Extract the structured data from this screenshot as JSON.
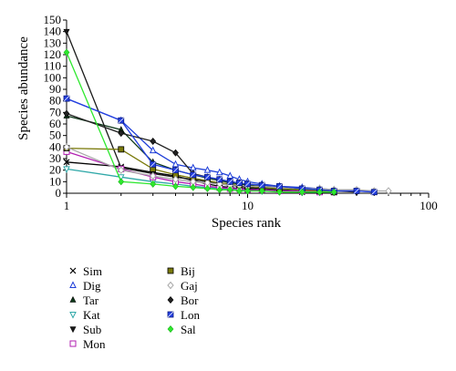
{
  "chart_data": {
    "type": "line",
    "xlabel": "Species rank",
    "ylabel": "Species abundance",
    "x_scale": "log",
    "xlim": [
      1,
      100
    ],
    "ylim": [
      0,
      150
    ],
    "x_ticks": [
      1,
      10,
      100
    ],
    "y_ticks": [
      0,
      10,
      20,
      30,
      40,
      50,
      60,
      70,
      80,
      90,
      100,
      110,
      120,
      130,
      140,
      150
    ],
    "grid": false,
    "legend_position": "bottom-left",
    "series": [
      {
        "name": "Sim",
        "marker": "x",
        "color": "#000000",
        "x": [
          1,
          2,
          3,
          4,
          5,
          6,
          7,
          8,
          9,
          10,
          12,
          15,
          20,
          25
        ],
        "y": [
          27,
          23,
          18,
          15,
          11,
          8,
          6,
          5,
          4,
          4,
          3,
          2,
          1,
          1
        ]
      },
      {
        "name": "Dig",
        "marker": "triangle-open",
        "color": "#1f3fd8",
        "x": [
          1,
          2,
          3,
          4,
          5,
          6,
          7,
          8,
          9,
          10,
          12,
          15,
          20,
          25,
          30,
          40,
          50
        ],
        "y": [
          82,
          63,
          37,
          25,
          22,
          20,
          18,
          15,
          12,
          10,
          8,
          6,
          5,
          4,
          3,
          2,
          1
        ]
      },
      {
        "name": "Tar",
        "marker": "triangle",
        "color": "#0f3a1a",
        "x": [
          1,
          2,
          3,
          4,
          5,
          6,
          7,
          8,
          9,
          10,
          12,
          15,
          20,
          25,
          30
        ],
        "y": [
          67,
          55,
          27,
          20,
          16,
          13,
          11,
          9,
          8,
          7,
          6,
          5,
          3,
          2,
          1
        ]
      },
      {
        "name": "Kat",
        "marker": "triangle-down-open",
        "color": "#2fa8a8",
        "x": [
          1,
          2,
          3,
          4,
          5,
          6,
          7,
          8,
          9,
          10,
          12,
          15,
          20,
          25,
          30
        ],
        "y": [
          21,
          14,
          10,
          8,
          6,
          5,
          4,
          4,
          3,
          3,
          2,
          2,
          1,
          1,
          1
        ]
      },
      {
        "name": "Sub",
        "marker": "triangle-down",
        "color": "#1a1a1a",
        "x": [
          1,
          2,
          3,
          4,
          5,
          6,
          7,
          8,
          9,
          10,
          12,
          15,
          20,
          25,
          30
        ],
        "y": [
          140,
          22,
          17,
          14,
          12,
          10,
          8,
          7,
          6,
          5,
          4,
          3,
          2,
          1,
          1
        ]
      },
      {
        "name": "Mon",
        "marker": "square-open",
        "color": "#b21fb2",
        "x": [
          1,
          2,
          3,
          4,
          5,
          6,
          7,
          8,
          9,
          10,
          12,
          15,
          20,
          25,
          30
        ],
        "y": [
          36,
          21,
          14,
          10,
          8,
          6,
          5,
          4,
          4,
          3,
          3,
          2,
          2,
          1,
          1
        ]
      },
      {
        "name": "Bij",
        "marker": "square",
        "color": "#7a7a0a",
        "x": [
          1,
          2,
          3,
          4,
          5,
          6,
          7,
          8,
          9,
          10,
          12,
          15,
          20,
          25,
          30
        ],
        "y": [
          39,
          38,
          21,
          16,
          13,
          11,
          9,
          8,
          7,
          6,
          5,
          4,
          3,
          2,
          1
        ]
      },
      {
        "name": "Gaj",
        "marker": "diamond-open",
        "color": "#a8a8a8",
        "x": [
          1,
          2,
          3,
          4,
          5,
          6,
          7,
          8,
          9,
          10,
          12,
          15,
          20,
          25,
          30,
          40,
          50,
          60
        ],
        "y": [
          40,
          20,
          15,
          12,
          10,
          9,
          8,
          7,
          7,
          6,
          6,
          5,
          4,
          4,
          3,
          3,
          2,
          2
        ]
      },
      {
        "name": "Bor",
        "marker": "diamond",
        "color": "#222222",
        "x": [
          1,
          2,
          3,
          4,
          5,
          6,
          7,
          8,
          9,
          10,
          12,
          15,
          20,
          25,
          30,
          40
        ],
        "y": [
          69,
          52,
          45,
          35,
          17,
          14,
          12,
          10,
          9,
          8,
          7,
          6,
          4,
          3,
          2,
          1
        ]
      },
      {
        "name": "Lon",
        "marker": "square-hatched",
        "color": "#2440e0",
        "x": [
          1,
          2,
          3,
          4,
          5,
          6,
          7,
          8,
          9,
          10,
          12,
          15,
          20,
          25,
          30,
          40,
          50
        ],
        "y": [
          82,
          63,
          25,
          20,
          16,
          14,
          12,
          10,
          9,
          8,
          7,
          6,
          4,
          3,
          2,
          2,
          1
        ]
      },
      {
        "name": "Sal",
        "marker": "diamond",
        "color": "#2ee82e",
        "x": [
          1,
          2,
          3,
          4,
          5,
          6,
          7,
          8,
          9,
          10,
          12,
          15,
          20,
          25,
          30
        ],
        "y": [
          122,
          10,
          8,
          6,
          5,
          4,
          3,
          3,
          2,
          2,
          2,
          1,
          1,
          1,
          1
        ]
      }
    ]
  }
}
